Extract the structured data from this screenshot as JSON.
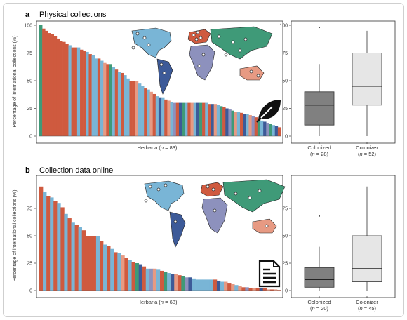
{
  "panels": [
    {
      "label": "a",
      "title": "Physical collections",
      "ylabel": "Percentage of international collections (%)",
      "xlabel_prefix": "Herbaria (",
      "xlabel_n": "n",
      "xlabel_suffix": " = 83)",
      "icon": "leaf-icon"
    },
    {
      "label": "b",
      "title": "Collection data online",
      "ylabel": "Percentage of international collections (%)",
      "xlabel_prefix": "Herbaria (",
      "xlabel_n": "n",
      "xlabel_suffix": " = 68)",
      "icon": "document-icon"
    }
  ],
  "colors": {
    "red": "#cf5a3f",
    "blue": "#79b5d6",
    "green": "#3f9a78",
    "navy": "#3d5a98",
    "lavender": "#8d91bd",
    "salmon": "#e79a83",
    "box_colonized": "#808080",
    "box_colonizer": "#e6e6e6"
  },
  "chart_data": [
    {
      "type": "bar",
      "panel": "a",
      "ylim": [
        0,
        100
      ],
      "yticks": [
        0,
        25,
        50,
        75,
        100
      ],
      "values": [
        100,
        97,
        95,
        93,
        92,
        90,
        88,
        86,
        85,
        83,
        82,
        80,
        80,
        80,
        78,
        77,
        76,
        74,
        73,
        70,
        70,
        68,
        66,
        65,
        65,
        62,
        60,
        58,
        57,
        55,
        52,
        50,
        50,
        50,
        48,
        45,
        43,
        42,
        40,
        38,
        36,
        35,
        35,
        33,
        32,
        31,
        30,
        30,
        30,
        30,
        30,
        30,
        30,
        30,
        30,
        30,
        30,
        30,
        29,
        29,
        29,
        28,
        27,
        26,
        25,
        24,
        23,
        22,
        22,
        21,
        20,
        20,
        19,
        18,
        17,
        15,
        14,
        13,
        12,
        11,
        10,
        9,
        8
      ],
      "bar_colors": [
        "green",
        "red",
        "red",
        "red",
        "red",
        "red",
        "red",
        "red",
        "red",
        "red",
        "blue",
        "red",
        "red",
        "blue",
        "red",
        "red",
        "blue",
        "red",
        "blue",
        "blue",
        "red",
        "blue",
        "salmon",
        "red",
        "green",
        "blue",
        "red",
        "blue",
        "red",
        "blue",
        "blue",
        "red",
        "red",
        "salmon",
        "blue",
        "blue",
        "red",
        "blue",
        "salmon",
        "red",
        "blue",
        "navy",
        "blue",
        "red",
        "salmon",
        "blue",
        "lavender",
        "red",
        "navy",
        "green",
        "blue",
        "red",
        "salmon",
        "blue",
        "navy",
        "green",
        "red",
        "blue",
        "red",
        "navy",
        "salmon",
        "blue",
        "green",
        "red",
        "navy",
        "lavender",
        "green",
        "salmon",
        "blue",
        "red",
        "navy",
        "blue",
        "salmon",
        "lavender",
        "red",
        "green",
        "blue",
        "navy",
        "lavender",
        "green",
        "blue",
        "navy",
        "red"
      ]
    },
    {
      "type": "box",
      "panel": "a",
      "ylim": [
        0,
        100
      ],
      "yticks": [
        0,
        25,
        50,
        75,
        100
      ],
      "groups": [
        {
          "label": "Colonized",
          "n_label_prefix": "(",
          "n_label_n": "n",
          "n_label_suffix": " = 28)",
          "min": 0,
          "q1": 10,
          "median": 28,
          "q3": 40,
          "max": 65,
          "outliers": [
            98
          ]
        },
        {
          "label": "Colonizer",
          "n_label_prefix": "(",
          "n_label_n": "n",
          "n_label_suffix": " = 52)",
          "min": 0,
          "q1": 28,
          "median": 45,
          "q3": 75,
          "max": 95,
          "outliers": []
        }
      ]
    },
    {
      "type": "bar",
      "panel": "b",
      "ylim": [
        0,
        100
      ],
      "yticks": [
        0,
        25,
        50,
        75
      ],
      "values": [
        95,
        90,
        86,
        85,
        82,
        80,
        76,
        70,
        66,
        62,
        60,
        58,
        55,
        50,
        50,
        50,
        50,
        45,
        42,
        41,
        38,
        35,
        34,
        32,
        30,
        28,
        26,
        25,
        24,
        22,
        20,
        20,
        20,
        19,
        18,
        17,
        16,
        15,
        15,
        14,
        13,
        12,
        12,
        11,
        10,
        10,
        10,
        10,
        10,
        10,
        9,
        8,
        8,
        7,
        6,
        5,
        4,
        3,
        3,
        2,
        2,
        2,
        2,
        2,
        1,
        1,
        1,
        0.5
      ],
      "bar_colors": [
        "red",
        "blue",
        "red",
        "blue",
        "red",
        "blue",
        "red",
        "blue",
        "red",
        "blue",
        "red",
        "blue",
        "red",
        "red",
        "red",
        "red",
        "blue",
        "red",
        "blue",
        "red",
        "blue",
        "red",
        "blue",
        "salmon",
        "red",
        "blue",
        "red",
        "green",
        "navy",
        "red",
        "blue",
        "lavender",
        "salmon",
        "blue",
        "red",
        "green",
        "blue",
        "navy",
        "salmon",
        "red",
        "green",
        "lavender",
        "navy",
        "blue",
        "blue",
        "blue",
        "blue",
        "blue",
        "blue",
        "red",
        "navy",
        "blue",
        "salmon",
        "red",
        "salmon",
        "blue",
        "salmon",
        "red",
        "lavender",
        "red",
        "salmon",
        "red",
        "navy",
        "red",
        "salmon",
        "red",
        "salmon",
        "red"
      ]
    },
    {
      "type": "box",
      "panel": "b",
      "ylim": [
        0,
        100
      ],
      "yticks": [
        0,
        25,
        50,
        75
      ],
      "groups": [
        {
          "label": "Colonized",
          "n_label_prefix": "(",
          "n_label_n": "n",
          "n_label_suffix": " = 20)",
          "min": 0,
          "q1": 3,
          "median": 10,
          "q3": 21,
          "max": 40,
          "outliers": [
            68
          ]
        },
        {
          "label": "Colonizer",
          "n_label_prefix": "(",
          "n_label_n": "n",
          "n_label_suffix": " = 45)",
          "min": 0,
          "q1": 8,
          "median": 20,
          "q3": 50,
          "max": 95,
          "outliers": []
        }
      ]
    }
  ]
}
